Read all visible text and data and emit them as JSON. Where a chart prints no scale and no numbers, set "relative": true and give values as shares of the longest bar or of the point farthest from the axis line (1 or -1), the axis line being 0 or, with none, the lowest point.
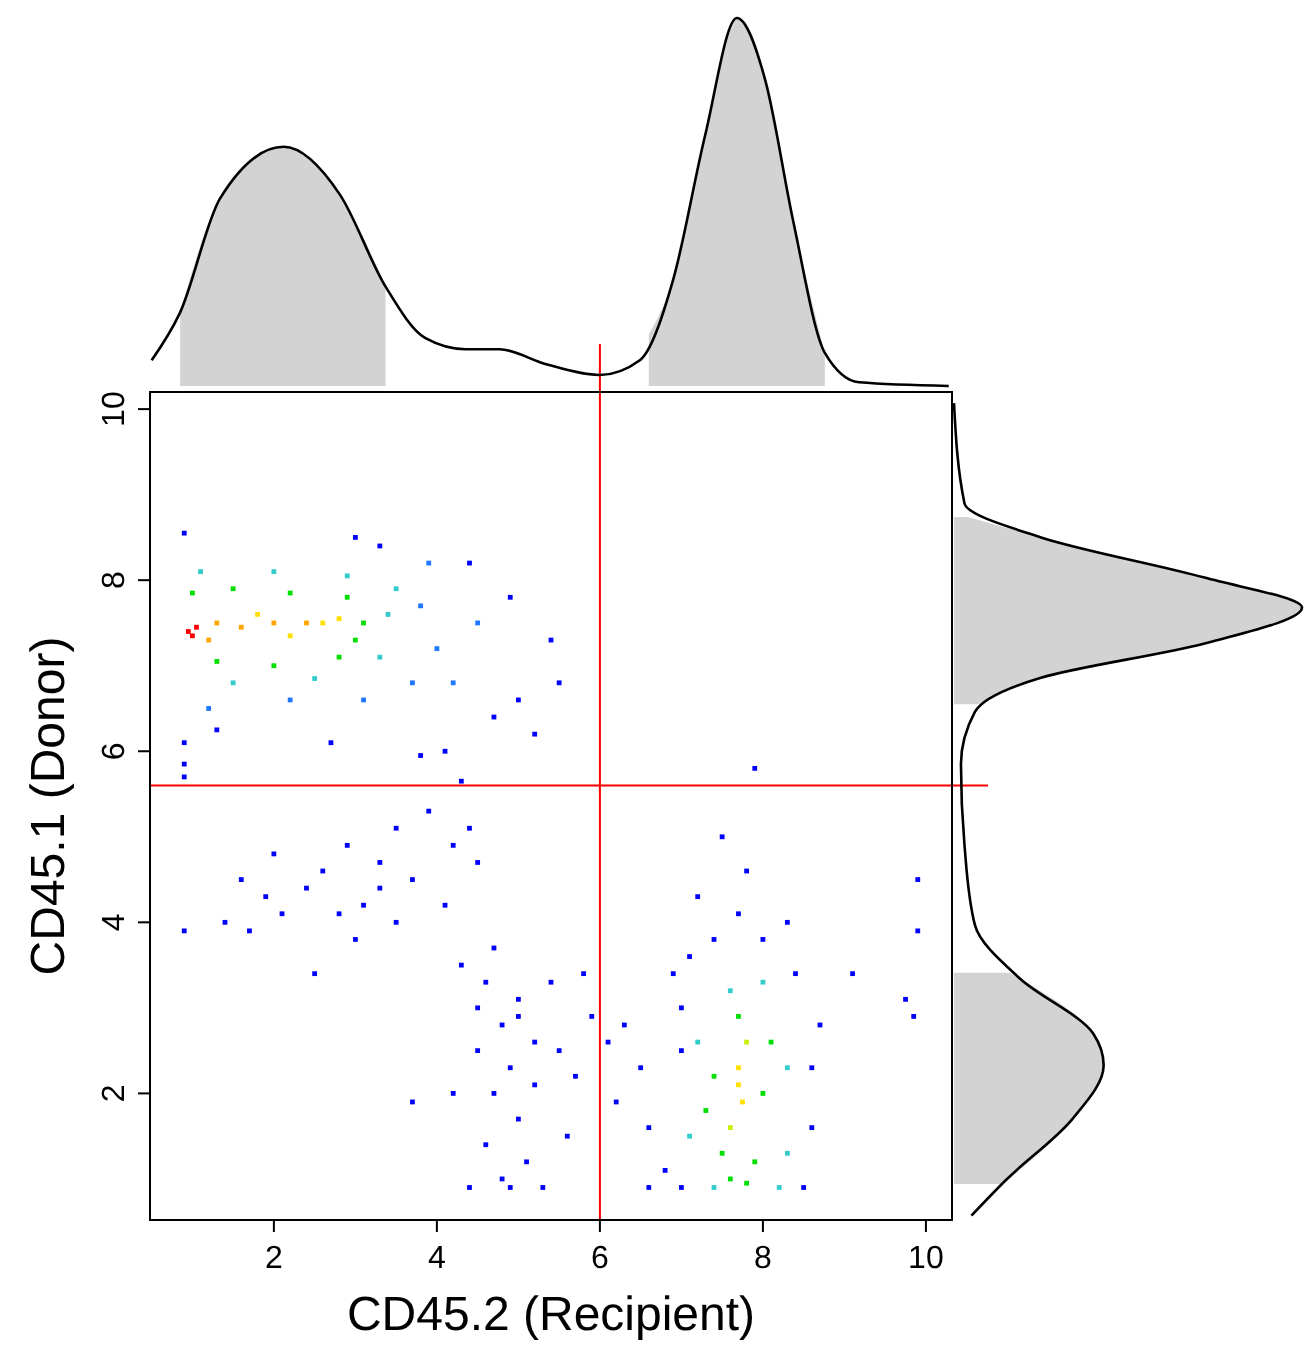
{
  "chart_data": [
    {
      "type": "scatter",
      "xlabel": "CD45.2 (Recipient)",
      "ylabel": "CD45.1 (Donor)",
      "xlim": [
        0.48,
        10.32
      ],
      "ylim": [
        0.52,
        10.2
      ],
      "xticks": [
        2,
        4,
        6,
        8,
        10
      ],
      "yticks": [
        2,
        4,
        6,
        8,
        10
      ],
      "marker": "square",
      "ref_lines": [
        {
          "axis": "x",
          "value": 6,
          "color": "#ff0000"
        },
        {
          "axis": "y",
          "value": 5.6,
          "color": "#ff0000"
        }
      ],
      "x": [
        0.95,
        1.05,
        1.0,
        1.3,
        1.6,
        2.0,
        2.4,
        1.2,
        2.6,
        1.8,
        2.2,
        2.8,
        1.0,
        1.5,
        2.2,
        2.9,
        3.1,
        1.3,
        2.0,
        2.8,
        3.0,
        1.1,
        2.0,
        2.9,
        3.4,
        1.5,
        2.5,
        3.3,
        3.5,
        3.8,
        4.0,
        3.7,
        2.2,
        1.2,
        3.1,
        4.2,
        4.5,
        3.9,
        0.9,
        3.0,
        3.3,
        4.4,
        4.9,
        5.4,
        5.5,
        5.0,
        4.7,
        2.7,
        1.3,
        0.9,
        5.2,
        4.1,
        0.9,
        3.8,
        4.3,
        0.9,
        0.9,
        1.4,
        1.6,
        1.9,
        2.1,
        2.4,
        2.6,
        2.9,
        3.1,
        3.3,
        3.5,
        3.7,
        3.9,
        4.2,
        4.5,
        3.0,
        4.4,
        4.7,
        2.5,
        1.7,
        3.5,
        4.1,
        2.8,
        2.0,
        3.3,
        4.3,
        4.6,
        4.8,
        5.0,
        4.5,
        4.9,
        5.2,
        4.7,
        5.0,
        4.6,
        5.1,
        4.4,
        4.9,
        5.3,
        5.5,
        5.8,
        5.9,
        4.2,
        3.7,
        5.6,
        5.4,
        4.8,
        5.2,
        4.5,
        5.0,
        5.7,
        6.1,
        6.2,
        6.5,
        6.6,
        6.8,
        6.6,
        7.0,
        6.3,
        6.9,
        7.1,
        7.7,
        7.7,
        7.75,
        7.6,
        7.8,
        7.5,
        7.9,
        7.4,
        8.0,
        7.7,
        7.6,
        7.8,
        8.1,
        7.3,
        7.2,
        8.3,
        7.6,
        8.0,
        7.1,
        8.3,
        7.4,
        8.2,
        7.0,
        8.5,
        8.6,
        8.4,
        7.4,
        8.0,
        7.2,
        7.5,
        7.8,
        7.9,
        8.7,
        8.6,
        9.1,
        9.9,
        9.9,
        9.85,
        9.75,
        7.7,
        8.3,
        7.0
      ],
      "values": [
        7.4,
        7.45,
        7.35,
        7.5,
        7.45,
        7.5,
        7.5,
        7.3,
        7.5,
        7.6,
        7.35,
        7.55,
        7.85,
        7.9,
        7.85,
        7.8,
        7.5,
        7.05,
        7.0,
        7.1,
        7.3,
        8.1,
        8.1,
        8.05,
        7.6,
        6.8,
        6.85,
        7.1,
        7.9,
        7.7,
        7.2,
        6.8,
        6.6,
        6.5,
        6.6,
        6.8,
        7.5,
        8.2,
        8.55,
        8.5,
        8.4,
        8.2,
        7.8,
        7.3,
        6.8,
        6.6,
        6.4,
        6.1,
        6.25,
        5.7,
        6.2,
        6.0,
        6.1,
        5.95,
        5.65,
        5.85,
        3.9,
        4.0,
        4.5,
        4.3,
        4.1,
        4.4,
        4.6,
        4.9,
        4.2,
        4.7,
        5.1,
        4.5,
        5.3,
        4.9,
        4.7,
        3.8,
        5.1,
        3.7,
        3.4,
        3.9,
        4.0,
        4.2,
        4.1,
        4.8,
        4.4,
        3.5,
        3.3,
        2.8,
        3.1,
        2.5,
        2.3,
        2.6,
        2.0,
        1.7,
        1.4,
        1.2,
        0.9,
        0.9,
        0.9,
        2.5,
        3.4,
        2.9,
        2.0,
        1.9,
        1.5,
        3.3,
        1.0,
        2.1,
        3.0,
        2.9,
        2.2,
        2.6,
        1.9,
        2.3,
        1.6,
        1.1,
        0.9,
        2.5,
        2.8,
        3.4,
        3.6,
        2.1,
        2.3,
        1.9,
        1.6,
        2.6,
        1.3,
        1.2,
        2.2,
        2.0,
        2.9,
        1.0,
        0.95,
        2.6,
        1.8,
        2.6,
        2.3,
        3.2,
        3.3,
        1.5,
        1.3,
        0.9,
        0.9,
        0.9,
        0.9,
        2.3,
        3.4,
        3.8,
        3.8,
        4.3,
        5.0,
        4.6,
        5.8,
        2.8,
        1.6,
        3.4,
        4.5,
        3.9,
        2.9,
        3.1,
        4.1,
        4.0,
        3.0
      ],
      "colors": [
        "#ff0000",
        "#ff0000",
        "#ff0000",
        "#ffa500",
        "#ffa500",
        "#ffa500",
        "#ffa500",
        "#ffa500",
        "#ffe000",
        "#ffe000",
        "#ffe000",
        "#ffe000",
        "#00e000",
        "#00e000",
        "#00e000",
        "#00e000",
        "#00e000",
        "#00e000",
        "#00e000",
        "#00e000",
        "#00e000",
        "#33cccc",
        "#33cccc",
        "#33cccc",
        "#33cccc",
        "#33cccc",
        "#33cccc",
        "#33cccc",
        "#33cccc",
        "#1f78ff",
        "#1f78ff",
        "#1f78ff",
        "#1f78ff",
        "#1f78ff",
        "#1f78ff",
        "#1f78ff",
        "#1f78ff",
        "#1f78ff",
        "#0000ff",
        "#0000ff",
        "#0000ff",
        "#0000ff",
        "#0000ff",
        "#0000ff",
        "#0000ff",
        "#0000ff",
        "#0000ff",
        "#0000ff",
        "#0000ff",
        "#0000ff",
        "#0000ff",
        "#0000ff",
        "#0000ff",
        "#0000ff",
        "#0000ff",
        "#0000ff",
        "#0000ff",
        "#0000ff",
        "#0000ff",
        "#0000ff",
        "#0000ff",
        "#0000ff",
        "#0000ff",
        "#0000ff",
        "#0000ff",
        "#0000ff",
        "#0000ff",
        "#0000ff",
        "#0000ff",
        "#0000ff",
        "#0000ff",
        "#0000ff",
        "#0000ff",
        "#0000ff",
        "#0000ff",
        "#0000ff",
        "#0000ff",
        "#0000ff",
        "#0000ff",
        "#0000ff",
        "#0000ff",
        "#0000ff",
        "#0000ff",
        "#0000ff",
        "#0000ff",
        "#0000ff",
        "#0000ff",
        "#0000ff",
        "#0000ff",
        "#0000ff",
        "#0000ff",
        "#0000ff",
        "#0000ff",
        "#0000ff",
        "#0000ff",
        "#0000ff",
        "#0000ff",
        "#0000ff",
        "#0000ff",
        "#0000ff",
        "#0000ff",
        "#0000ff",
        "#0000ff",
        "#0000ff",
        "#0000ff",
        "#0000ff",
        "#0000ff",
        "#0000ff",
        "#0000ff",
        "#0000ff",
        "#0000ff",
        "#0000ff",
        "#0000ff",
        "#0000ff",
        "#0000ff",
        "#0000ff",
        "#0000ff",
        "#ffe000",
        "#ffe000",
        "#ffe000",
        "#ccee00",
        "#ccee00",
        "#00e000",
        "#00e000",
        "#00e000",
        "#00e000",
        "#00e000",
        "#00e000",
        "#00e000",
        "#00e000",
        "#00e000",
        "#33cccc",
        "#33cccc",
        "#33cccc",
        "#33cccc",
        "#33cccc",
        "#33cccc",
        "#33cccc",
        "#33cccc",
        "#0000ff",
        "#0000ff",
        "#0000ff",
        "#0000ff",
        "#0000ff",
        "#0000ff",
        "#0000ff",
        "#0000ff",
        "#0000ff",
        "#0000ff",
        "#0000ff",
        "#0000ff",
        "#0000ff",
        "#0000ff",
        "#0000ff",
        "#0000ff",
        "#0000ff",
        "#0000ff",
        "#0000ff",
        "#0000ff"
      ]
    },
    {
      "type": "line",
      "relative": true,
      "xlim": [
        0.48,
        10.32
      ],
      "series": [
        {
          "type": "area",
          "color": "#d3d3d3",
          "x": [
            0.85,
            1.34,
            2.12,
            2.81,
            3.37
          ],
          "values": [
            0.2,
            0.51,
            0.65,
            0.52,
            0.27
          ]
        },
        {
          "type": "area",
          "color": "#d3d3d3",
          "x": [
            6.6,
            6.9,
            7.29,
            7.68,
            8.03,
            8.37,
            8.76
          ],
          "values": [
            0.14,
            0.29,
            0.68,
            1,
            0.83,
            0.45,
            0.09
          ]
        },
        {
          "type": "line",
          "color": "#000000",
          "x": [
            0.5,
            0.85,
            1.34,
            2.12,
            2.81,
            3.37,
            3.86,
            4.35,
            4.77,
            5.33,
            6.0,
            6.49,
            6.9,
            7.29,
            7.68,
            8.03,
            8.37,
            8.76,
            9.18,
            10.28
          ],
          "values": [
            0.07,
            0.2,
            0.51,
            0.65,
            0.52,
            0.27,
            0.13,
            0.1,
            0.1,
            0.06,
            0.03,
            0.07,
            0.29,
            0.68,
            1,
            0.83,
            0.45,
            0.09,
            0.01,
            0
          ]
        }
      ]
    },
    {
      "type": "line",
      "relative": true,
      "orientation": "horizontal",
      "ylim": [
        0.52,
        10.2
      ],
      "series": [
        {
          "type": "area",
          "color": "#d3d3d3",
          "x": [
            8.74,
            8.5,
            8.03,
            7.68,
            7.26,
            6.86,
            6.55
          ],
          "values": [
            0.04,
            0.25,
            0.72,
            1,
            0.72,
            0.25,
            0.07
          ]
        },
        {
          "type": "area",
          "color": "#d3d3d3",
          "x": [
            3.41,
            3.34,
            2.7,
            2.33,
            1.7,
            0.94
          ],
          "values": [
            0.16,
            0.19,
            0.4,
            0.43,
            0.34,
            0.14
          ]
        },
        {
          "type": "line",
          "color": "#000000",
          "x": [
            10.07,
            8.9,
            8.5,
            8.03,
            7.68,
            7.26,
            6.86,
            6.46,
            5.85,
            4.91,
            3.97,
            3.34,
            2.7,
            2.33,
            1.7,
            0.99,
            0.57
          ],
          "values": [
            0,
            0.03,
            0.25,
            0.72,
            1,
            0.72,
            0.25,
            0.06,
            0.02,
            0.03,
            0.06,
            0.19,
            0.4,
            0.43,
            0.34,
            0.15,
            0.05
          ]
        }
      ]
    }
  ]
}
